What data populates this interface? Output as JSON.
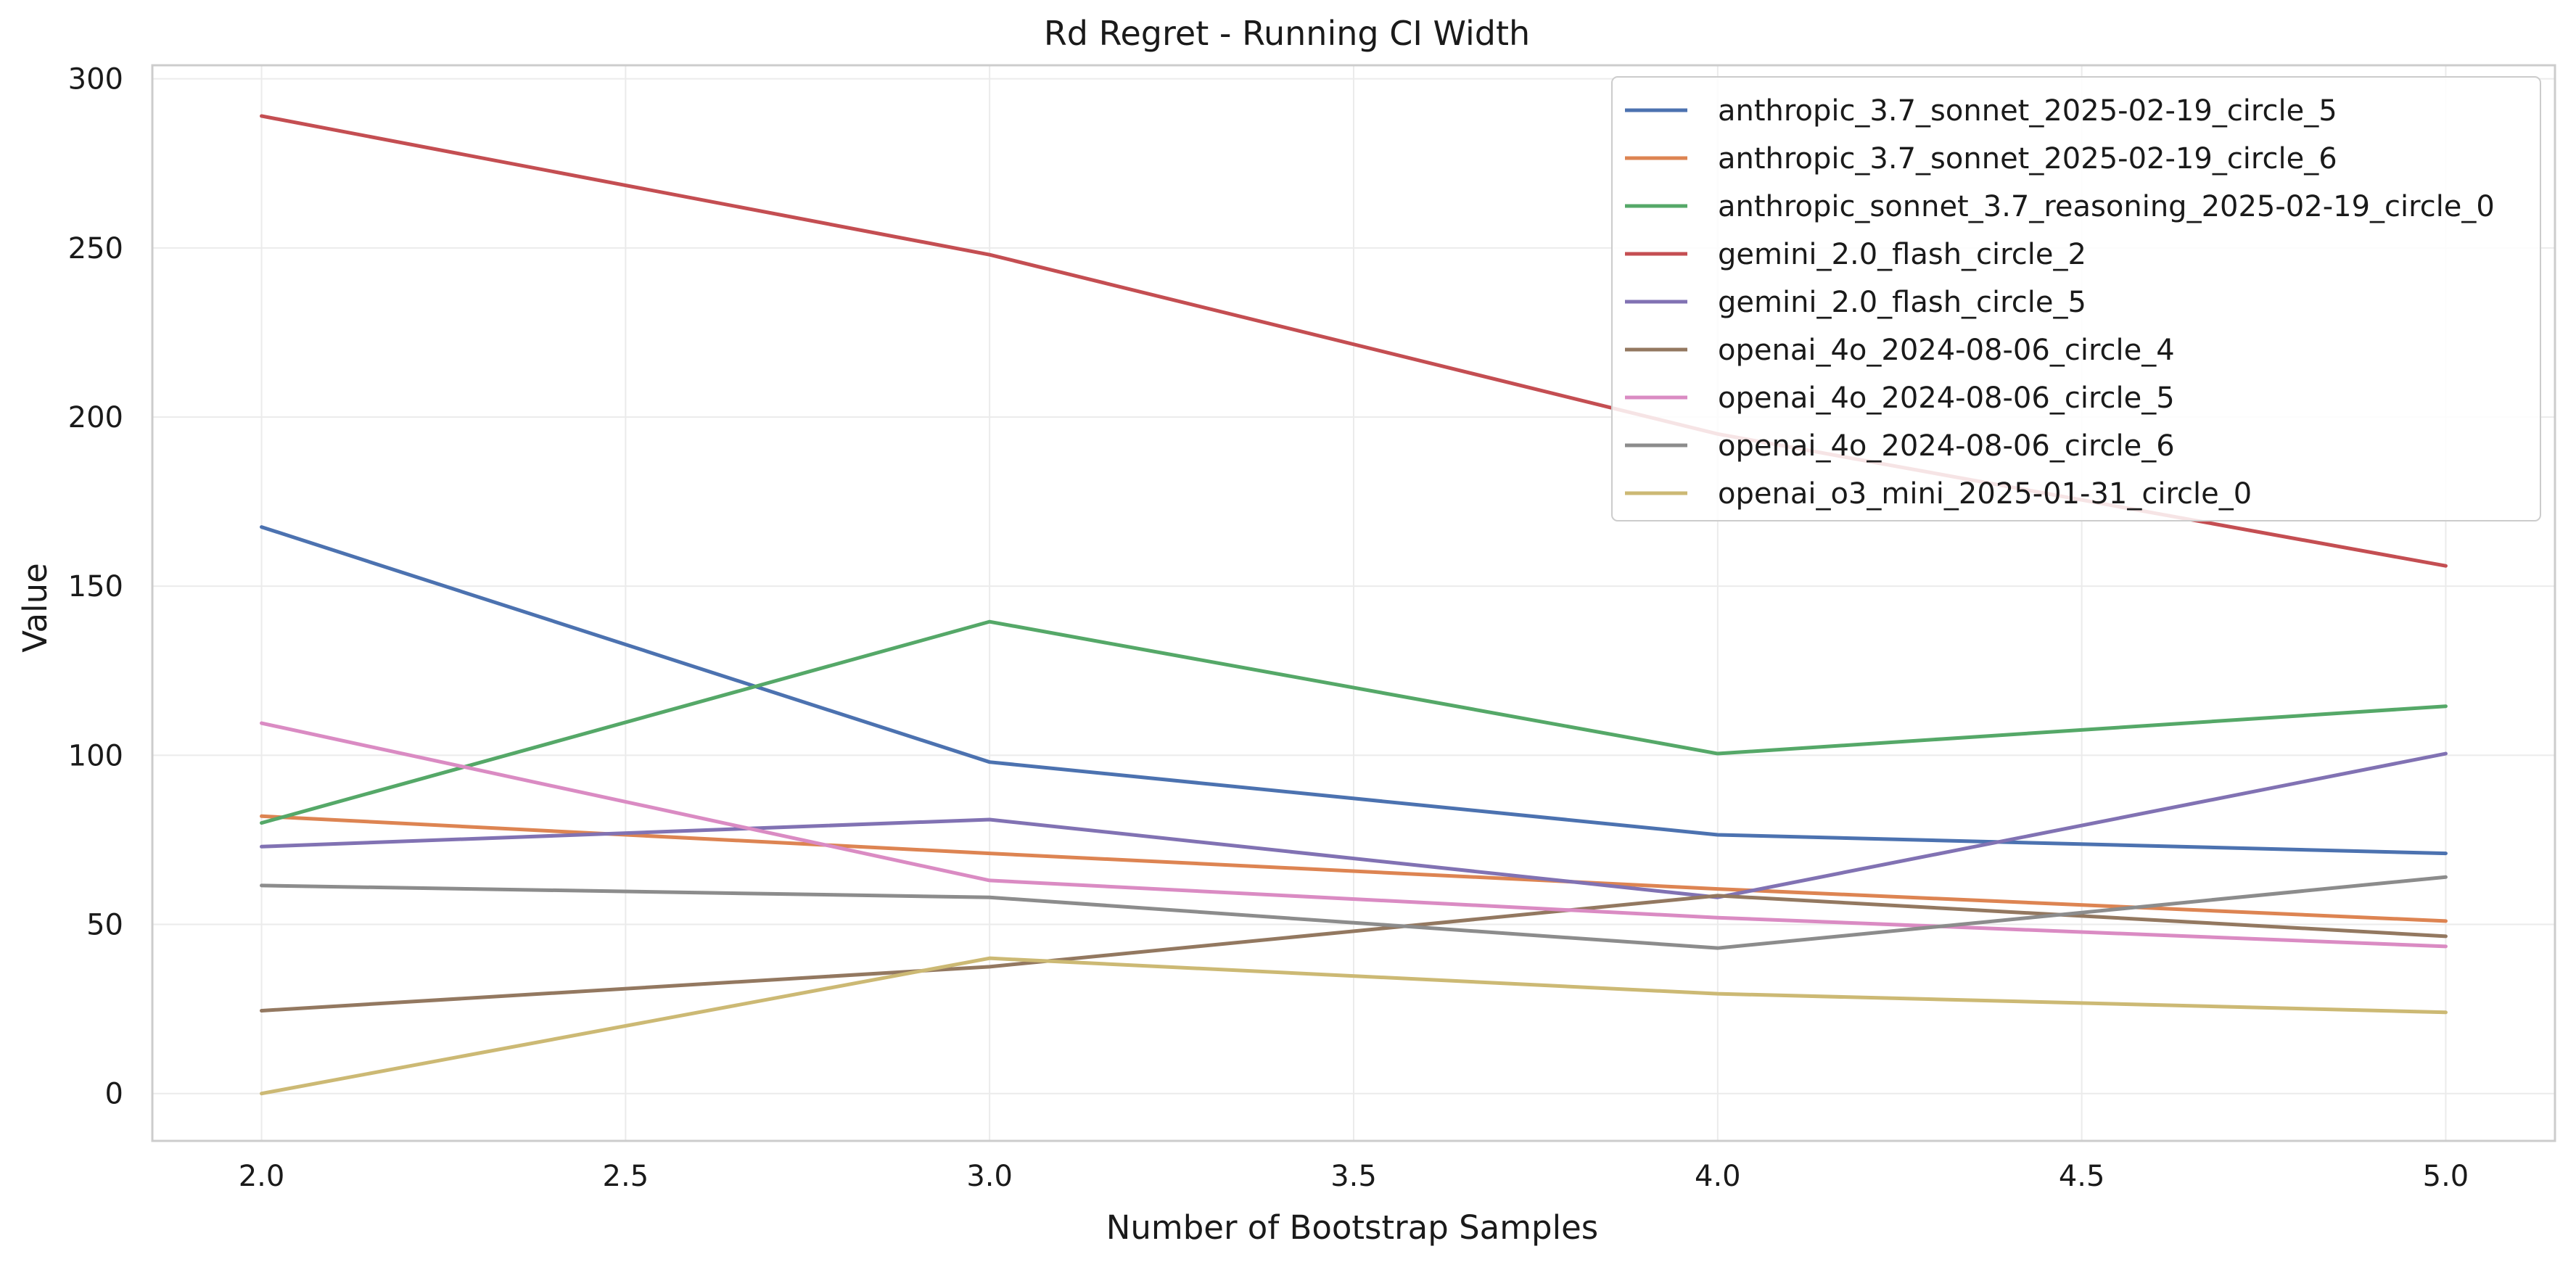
{
  "chart_data": {
    "type": "line",
    "title": "Rd Regret - Running CI Width",
    "xlabel": "Number of Bootstrap Samples",
    "ylabel": "Value",
    "x": [
      2.0,
      3.0,
      4.0,
      5.0
    ],
    "xlim": [
      1.85,
      5.15
    ],
    "ylim": [
      -14,
      304
    ],
    "xticks": [
      "2.0",
      "2.5",
      "3.0",
      "3.5",
      "4.0",
      "4.5",
      "5.0"
    ],
    "yticks": [
      "0",
      "50",
      "100",
      "150",
      "200",
      "250",
      "300"
    ],
    "grid": true,
    "legend_position": "top-right",
    "series": [
      {
        "name": "anthropic_3.7_sonnet_2025-02-19_circle_5",
        "color": "#4c72b0",
        "values": [
          167.5,
          98,
          76.5,
          71
        ]
      },
      {
        "name": "anthropic_3.7_sonnet_2025-02-19_circle_6",
        "color": "#dd8452",
        "values": [
          82,
          71,
          60.5,
          51
        ]
      },
      {
        "name": "anthropic_sonnet_3.7_reasoning_2025-02-19_circle_0",
        "color": "#55a868",
        "values": [
          80,
          139.5,
          100.5,
          114.5
        ]
      },
      {
        "name": "gemini_2.0_flash_circle_2",
        "color": "#c44e52",
        "values": [
          289,
          248,
          195,
          156
        ]
      },
      {
        "name": "gemini_2.0_flash_circle_5",
        "color": "#8172b3",
        "values": [
          73,
          81,
          58,
          100.5
        ]
      },
      {
        "name": "openai_4o_2024-08-06_circle_4",
        "color": "#937860",
        "values": [
          24.5,
          37.5,
          58.5,
          46.5
        ]
      },
      {
        "name": "openai_4o_2024-08-06_circle_5",
        "color": "#da8bc3",
        "values": [
          109.5,
          63,
          52,
          43.5
        ]
      },
      {
        "name": "openai_4o_2024-08-06_circle_6",
        "color": "#8c8c8c",
        "values": [
          61.5,
          58,
          43,
          64
        ]
      },
      {
        "name": "openai_o3_mini_2025-01-31_circle_0",
        "color": "#ccb974",
        "values": [
          0,
          40,
          29.5,
          24
        ]
      }
    ]
  }
}
